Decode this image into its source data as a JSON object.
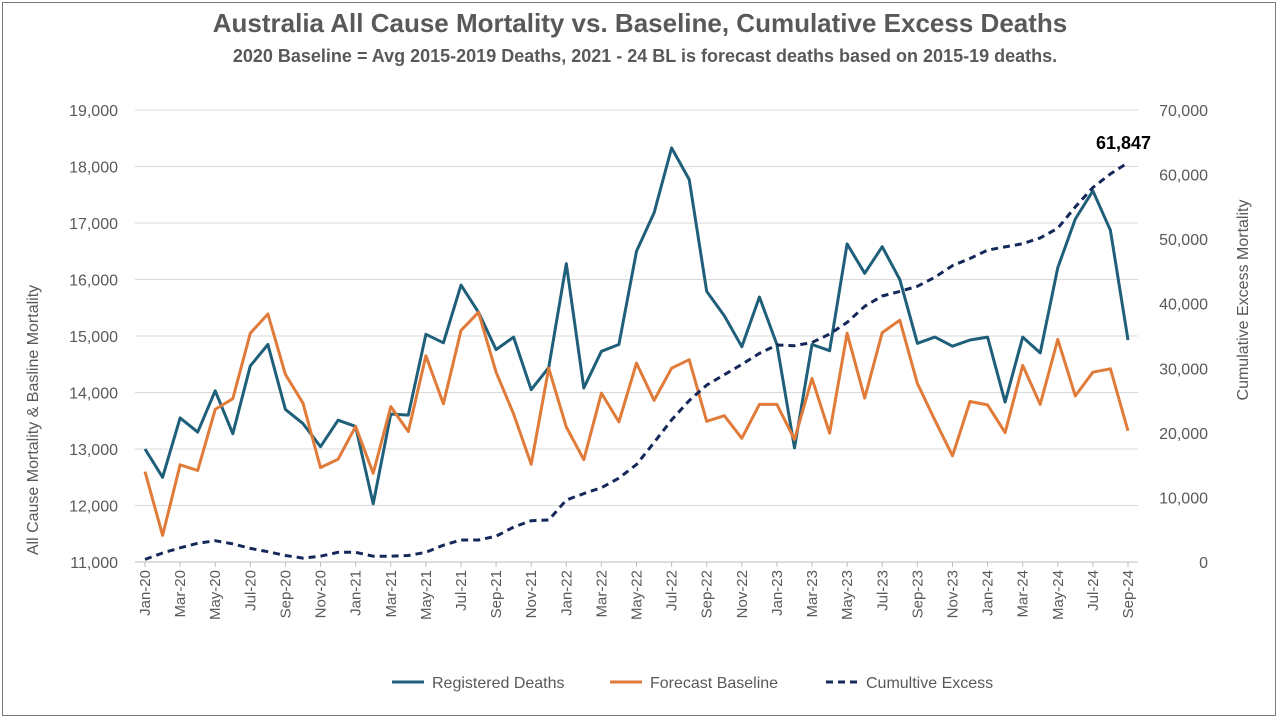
{
  "chart_data": {
    "type": "line",
    "title": "Australia All Cause Mortality vs. Baseline, Cumulative Excess Deaths",
    "subtitle": "2020 Baseline = Avg 2015-2019 Deaths, 2021 - 24 BL is forecast deaths based on 2015-19 deaths.",
    "ylabel": "All Cause Mortality & Basline Mortality",
    "y2label": "Cumulative Excess Mortality",
    "ylim": [
      11000,
      19000
    ],
    "y2lim": [
      0,
      70000
    ],
    "y_ticks": [
      "11,000",
      "12,000",
      "13,000",
      "14,000",
      "15,000",
      "16,000",
      "17,000",
      "18,000",
      "19,000"
    ],
    "y2_ticks": [
      "0",
      "10,000",
      "20,000",
      "30,000",
      "40,000",
      "50,000",
      "60,000",
      "70,000"
    ],
    "x": [
      "Jan-20",
      "Feb-20",
      "Mar-20",
      "Apr-20",
      "May-20",
      "Jun-20",
      "Jul-20",
      "Aug-20",
      "Sep-20",
      "Oct-20",
      "Nov-20",
      "Dec-20",
      "Jan-21",
      "Feb-21",
      "Mar-21",
      "Apr-21",
      "May-21",
      "Jun-21",
      "Jul-21",
      "Aug-21",
      "Sep-21",
      "Oct-21",
      "Nov-21",
      "Dec-21",
      "Jan-22",
      "Feb-22",
      "Mar-22",
      "Apr-22",
      "May-22",
      "Jun-22",
      "Jul-22",
      "Aug-22",
      "Sep-22",
      "Oct-22",
      "Nov-22",
      "Dec-22",
      "Jan-23",
      "Feb-23",
      "Mar-23",
      "Apr-23",
      "May-23",
      "Jun-23",
      "Jul-23",
      "Aug-23",
      "Sep-23",
      "Oct-23",
      "Nov-23",
      "Dec-23",
      "Jan-24",
      "Feb-24",
      "Mar-24",
      "Apr-24",
      "May-24",
      "Jun-24",
      "Jul-24",
      "Aug-24",
      "Sep-24"
    ],
    "x_tick_labels": [
      "Jan-20",
      "Mar-20",
      "May-20",
      "Jul-20",
      "Sep-20",
      "Nov-20",
      "Jan-21",
      "Mar-21",
      "May-21",
      "Jul-21",
      "Sep-21",
      "Nov-21",
      "Jan-22",
      "Mar-22",
      "May-22",
      "Jul-22",
      "Sep-22",
      "Nov-22",
      "Jan-23",
      "Mar-23",
      "May-23",
      "Jul-23",
      "Sep-23",
      "Nov-23",
      "Jan-24",
      "Mar-24",
      "May-24",
      "Jul-24",
      "Sep-24"
    ],
    "series": [
      {
        "name": "Registered Deaths",
        "axis": "left",
        "color": "#1f5f7a",
        "style": "solid",
        "values": [
          13000,
          12500,
          13550,
          13300,
          14030,
          13270,
          14470,
          14850,
          13700,
          13450,
          13040,
          13510,
          13400,
          12030,
          13620,
          13600,
          15030,
          14880,
          15900,
          15420,
          14760,
          14980,
          14050,
          14440,
          16280,
          14080,
          14730,
          14850,
          16500,
          17180,
          18330,
          17770,
          15790,
          15360,
          14810,
          15690,
          14850,
          13020,
          14850,
          14740,
          16630,
          16110,
          16580,
          16000,
          14870,
          14980,
          14820,
          14930,
          14980,
          13830,
          14980,
          14700,
          16210,
          17070,
          17570,
          16870,
          14930
        ]
      },
      {
        "name": "Forecast Baseline",
        "axis": "left",
        "color": "#e07b39",
        "style": "solid",
        "values": [
          12600,
          11470,
          12720,
          12620,
          13700,
          13890,
          15050,
          15390,
          14320,
          13810,
          12670,
          12820,
          13400,
          12570,
          13750,
          13310,
          14650,
          13800,
          15100,
          15420,
          14360,
          13620,
          12730,
          14430,
          13390,
          12810,
          13990,
          13480,
          14520,
          13860,
          14430,
          14580,
          13490,
          13590,
          13190,
          13790,
          13790,
          13170,
          14250,
          13280,
          15050,
          13900,
          15060,
          15280,
          14160,
          13510,
          12880,
          13840,
          13780,
          13290,
          14480,
          13790,
          14940,
          13940,
          14360,
          14420,
          13320
        ]
      },
      {
        "name": "Cumultive Excess",
        "axis": "right",
        "color": "#14285a",
        "style": "dashed",
        "values": [
          400,
          1400,
          2200,
          2900,
          3300,
          2800,
          2100,
          1600,
          1000,
          600,
          900,
          1500,
          1500,
          900,
          900,
          1000,
          1500,
          2600,
          3400,
          3400,
          4000,
          5400,
          6400,
          6500,
          9600,
          10600,
          11500,
          13000,
          15100,
          18500,
          22000,
          25000,
          27400,
          29000,
          30600,
          32300,
          33600,
          33500,
          34000,
          35300,
          37100,
          39600,
          41200,
          41900,
          42700,
          44100,
          45900,
          47000,
          48300,
          48800,
          49300,
          50200,
          51700,
          55000,
          58000,
          60100,
          61847
        ]
      }
    ],
    "annotation": "61,847",
    "legend_position": "bottom",
    "grid": true
  }
}
